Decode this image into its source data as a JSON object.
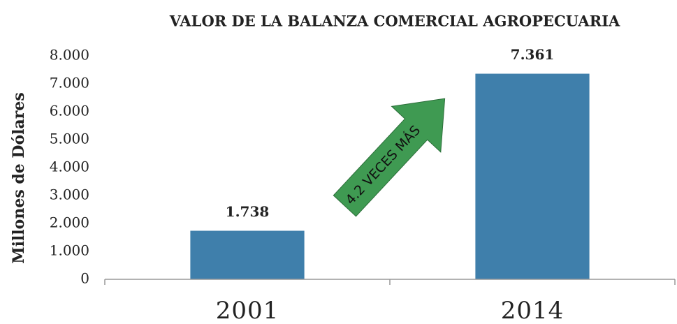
{
  "chart_data": {
    "type": "bar",
    "title": "VALOR DE LA BALANZA COMERCIAL AGROPECUARIA",
    "y_label": "Millones de Dólares",
    "annotation": "4.2 VECES MÁS",
    "categories": [
      "2001",
      "2014"
    ],
    "values": [
      1738,
      7361
    ],
    "value_labels": [
      "1.738",
      "7.361"
    ],
    "color": "#3f7fab",
    "ylim": [
      0,
      8000
    ],
    "yticks": [
      0,
      {
        "value": 1000,
        "label": "1.000"
      },
      {
        "value": 2000,
        "label": "2.000"
      },
      {
        "value": 3000,
        "label": "3.000"
      },
      {
        "value": 4000,
        "label": "4.000"
      },
      {
        "value": 5000,
        "label": "5.000"
      },
      {
        "value": 6000,
        "label": "6.000"
      },
      {
        "value": 7000,
        "label": "7.000"
      },
      {
        "value": 8000,
        "label": "8.000"
      }
    ],
    "grid": false
  }
}
